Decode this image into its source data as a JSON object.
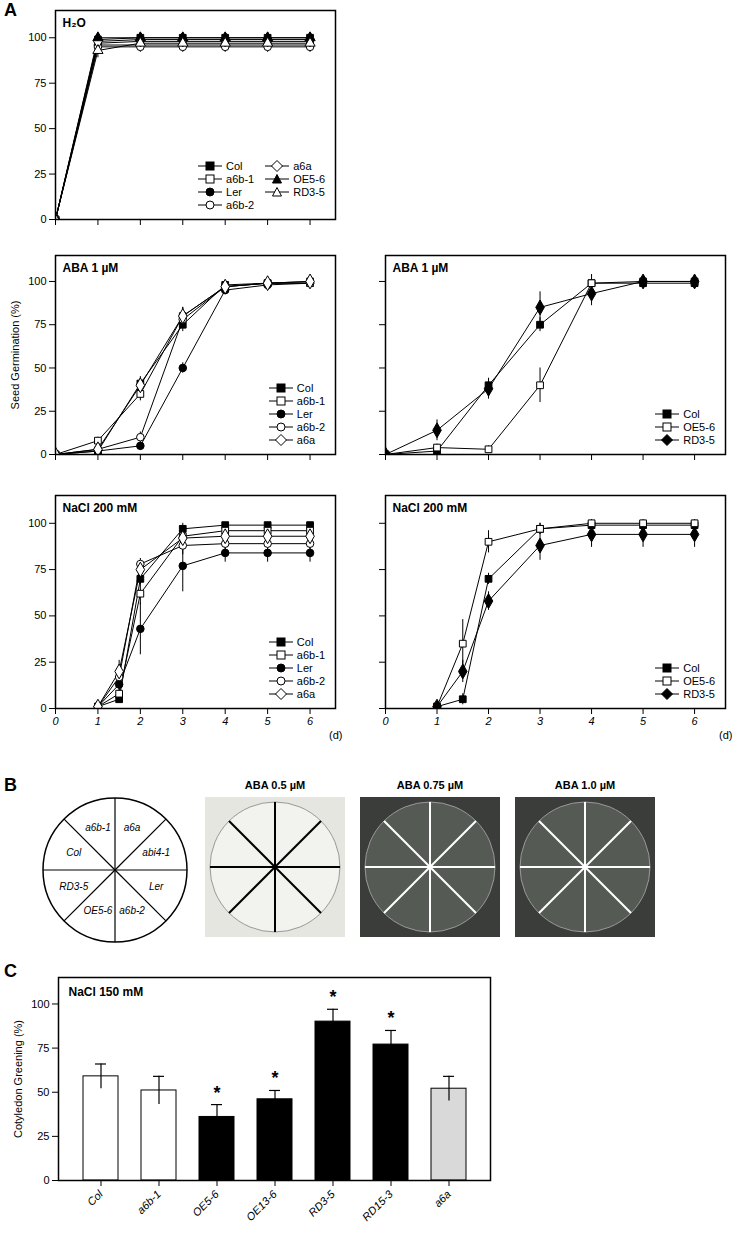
{
  "chart_data": [
    {
      "panel": "A",
      "type": "line",
      "title": "H₂O",
      "x": [
        0,
        1,
        2,
        3,
        4,
        5,
        6
      ],
      "xlim": [
        0,
        6.6
      ],
      "xticks": [
        0,
        1,
        2,
        3,
        4,
        5,
        6
      ],
      "ylim": [
        0,
        115
      ],
      "yticks": [
        0,
        25,
        50,
        75,
        100
      ],
      "tick_labels": "y",
      "legend": "lower right",
      "series": [
        {
          "name": "Col",
          "color": "#000000",
          "marker": "filled-square",
          "values": [
            0,
            99,
            100,
            100,
            100,
            100,
            100
          ],
          "errors": [
            0,
            3,
            2,
            2,
            2,
            2,
            2
          ]
        },
        {
          "name": "a6b-1",
          "color": "#000000",
          "marker": "open-square",
          "values": [
            0,
            97,
            98,
            98,
            98,
            98,
            98
          ],
          "errors": [
            0,
            4,
            3,
            3,
            3,
            3,
            3
          ]
        },
        {
          "name": "Ler",
          "color": "#000000",
          "marker": "filled-circle",
          "values": [
            0,
            96,
            96,
            96,
            96,
            96,
            96
          ],
          "errors": [
            0,
            3,
            3,
            3,
            3,
            3,
            3
          ]
        },
        {
          "name": "a6b-2",
          "color": "#000000",
          "marker": "open-circle",
          "values": [
            0,
            95,
            95,
            95,
            95,
            95,
            95
          ],
          "errors": [
            0,
            3,
            3,
            3,
            3,
            3,
            3
          ]
        },
        {
          "name": "a6a",
          "color": "#000000",
          "marker": "open-diamond",
          "values": [
            0,
            98,
            99,
            99,
            99,
            99,
            99
          ],
          "errors": [
            0,
            2,
            2,
            2,
            2,
            2,
            2
          ]
        },
        {
          "name": "OE5-6",
          "color": "#000000",
          "marker": "filled-triangle",
          "values": [
            0,
            100,
            100,
            100,
            100,
            100,
            100
          ],
          "errors": [
            0,
            2,
            2,
            2,
            2,
            2,
            2
          ]
        },
        {
          "name": "RD3-5",
          "color": "#000000",
          "marker": "open-triangle",
          "values": [
            0,
            93,
            97,
            97,
            97,
            97,
            97
          ],
          "errors": [
            0,
            4,
            3,
            3,
            3,
            3,
            3
          ]
        }
      ]
    },
    {
      "type": "line",
      "title": "ABA 1 µM",
      "ylabel": "Seed Germination (%)",
      "x": [
        0,
        1,
        2,
        3,
        4,
        5,
        6
      ],
      "xlim": [
        0,
        6.6
      ],
      "xticks": [
        0,
        1,
        2,
        3,
        4,
        5,
        6
      ],
      "ylim": [
        0,
        115
      ],
      "yticks": [
        0,
        25,
        50,
        75,
        100
      ],
      "tick_labels": "y",
      "legend": "lower right",
      "series": [
        {
          "name": "Col",
          "color": "#000000",
          "marker": "filled-square",
          "values": [
            0,
            2,
            41,
            75,
            98,
            99,
            99
          ],
          "errors": [
            0,
            1,
            4,
            4,
            2,
            1,
            1
          ]
        },
        {
          "name": "a6b-1",
          "color": "#000000",
          "marker": "open-square",
          "values": [
            0,
            8,
            35,
            80,
            97,
            99,
            100
          ],
          "errors": [
            0,
            2,
            4,
            5,
            2,
            1,
            1
          ]
        },
        {
          "name": "Ler",
          "color": "#000000",
          "marker": "filled-circle",
          "values": [
            0,
            2,
            5,
            50,
            95,
            98,
            99
          ],
          "errors": [
            0,
            1,
            2,
            3,
            2,
            1,
            1
          ]
        },
        {
          "name": "a6b-2",
          "color": "#000000",
          "marker": "open-circle",
          "values": [
            0,
            3,
            10,
            78,
            97,
            99,
            99
          ],
          "errors": [
            0,
            1,
            3,
            4,
            2,
            1,
            1
          ]
        },
        {
          "name": "a6a",
          "color": "#000000",
          "marker": "open-diamond",
          "values": [
            0,
            3,
            40,
            80,
            97,
            99,
            100
          ],
          "errors": [
            0,
            1,
            4,
            5,
            2,
            1,
            1
          ]
        }
      ]
    },
    {
      "type": "line",
      "title": "ABA 1 µM",
      "x": [
        0,
        1,
        2,
        3,
        4,
        5,
        6
      ],
      "xlim": [
        0,
        6.6
      ],
      "xticks": [
        0,
        1,
        2,
        3,
        4,
        5,
        6
      ],
      "ylim": [
        0,
        115
      ],
      "yticks": [
        0,
        25,
        50,
        75,
        100
      ],
      "tick_labels": false,
      "legend": "lower right",
      "series": [
        {
          "name": "Col",
          "color": "#000000",
          "marker": "filled-square",
          "values": [
            0,
            2,
            40,
            75,
            99,
            99,
            99
          ],
          "errors": [
            0,
            1,
            4,
            4,
            2,
            1,
            1
          ]
        },
        {
          "name": "OE5-6",
          "color": "#000000",
          "marker": "open-square",
          "values": [
            0,
            4,
            3,
            40,
            99,
            100,
            100
          ],
          "errors": [
            0,
            2,
            2,
            10,
            5,
            3,
            3
          ]
        },
        {
          "name": "RD3-5",
          "color": "#000000",
          "marker": "filled-diamond",
          "values": [
            0,
            14,
            38,
            85,
            93,
            100,
            100
          ],
          "errors": [
            0,
            6,
            6,
            9,
            7,
            2,
            2
          ]
        }
      ]
    },
    {
      "type": "line",
      "title": "NaCl 200 mM",
      "xlabel": "(d)",
      "x": [
        1,
        1.5,
        2,
        3,
        4,
        5,
        6
      ],
      "xlim": [
        0,
        6.6
      ],
      "xticks": [
        0,
        1,
        2,
        3,
        4,
        5,
        6
      ],
      "ylim": [
        0,
        115
      ],
      "yticks": [
        0,
        25,
        50,
        75,
        100
      ],
      "legend": "lower right",
      "series": [
        {
          "name": "Col",
          "color": "#000000",
          "marker": "filled-square",
          "values": [
            1,
            5,
            70,
            97,
            99,
            99,
            99
          ],
          "errors": [
            1,
            2,
            3,
            3,
            1,
            1,
            1
          ]
        },
        {
          "name": "a6b-1",
          "color": "#000000",
          "marker": "open-square",
          "values": [
            1,
            8,
            62,
            93,
            96,
            96,
            96
          ],
          "errors": [
            1,
            3,
            6,
            4,
            3,
            3,
            3
          ]
        },
        {
          "name": "Ler",
          "color": "#000000",
          "marker": "filled-circle",
          "values": [
            1,
            13,
            43,
            77,
            84,
            84,
            84
          ],
          "errors": [
            1,
            5,
            14,
            14,
            5,
            5,
            5
          ]
        },
        {
          "name": "a6b-2",
          "color": "#000000",
          "marker": "open-circle",
          "values": [
            1,
            17,
            78,
            88,
            89,
            89,
            89
          ],
          "errors": [
            1,
            5,
            3,
            5,
            4,
            4,
            4
          ]
        },
        {
          "name": "a6a",
          "color": "#000000",
          "marker": "open-diamond",
          "values": [
            1,
            20,
            75,
            92,
            93,
            93,
            93
          ],
          "errors": [
            1,
            6,
            4,
            4,
            4,
            4,
            4
          ]
        }
      ]
    },
    {
      "type": "line",
      "title": "NaCl 200 mM",
      "xlabel": "(d)",
      "x": [
        1,
        1.5,
        2,
        3,
        4,
        5,
        6
      ],
      "xlim": [
        0,
        6.6
      ],
      "xticks": [
        0,
        1,
        2,
        3,
        4,
        5,
        6
      ],
      "ylim": [
        0,
        115
      ],
      "yticks": [
        0,
        25,
        50,
        75,
        100
      ],
      "tick_labels": "x",
      "legend": "lower right",
      "series": [
        {
          "name": "Col",
          "color": "#000000",
          "marker": "filled-square",
          "values": [
            1,
            5,
            70,
            97,
            99,
            99,
            99
          ],
          "errors": [
            1,
            3,
            3,
            3,
            1,
            1,
            1
          ]
        },
        {
          "name": "OE5-6",
          "color": "#000000",
          "marker": "open-square",
          "values": [
            1,
            35,
            90,
            97,
            100,
            100,
            100
          ],
          "errors": [
            1,
            13,
            6,
            3,
            2,
            2,
            2
          ]
        },
        {
          "name": "RD3-5",
          "color": "#000000",
          "marker": "filled-diamond",
          "values": [
            1,
            20,
            58,
            88,
            94,
            94,
            94
          ],
          "errors": [
            1,
            6,
            5,
            8,
            7,
            7,
            7
          ]
        }
      ]
    },
    {
      "panel": "C",
      "type": "bar",
      "title": "NaCl 150 mM",
      "ylabel": "Cotyledon Greening (%)",
      "categories": [
        "Col",
        "a6b-1",
        "OE5-6",
        "OE13-6",
        "RD3-5",
        "RD15-3",
        "a6a"
      ],
      "values": [
        59,
        51,
        36,
        46,
        90,
        77,
        52
      ],
      "errors": [
        7,
        8,
        7,
        5,
        7,
        8,
        7
      ],
      "colors": [
        "#ffffff",
        "#ffffff",
        "#000000",
        "#000000",
        "#000000",
        "#000000",
        "#d9d9d9"
      ],
      "significance": [
        null,
        null,
        "*",
        "*",
        "*",
        "*",
        null
      ],
      "ylim": [
        0,
        115
      ],
      "yticks": [
        0,
        25,
        50,
        75,
        100
      ]
    }
  ],
  "plate_figure": {
    "panel": "B",
    "sectors": [
      "a6a",
      "abi4-1",
      "Ler",
      "a6b-2",
      "OE5-6",
      "RD3-5",
      "Col",
      "a6b-1"
    ],
    "plates": [
      "ABA 0.5 µM",
      "ABA 0.75 µM",
      "ABA 1.0 µM"
    ]
  }
}
